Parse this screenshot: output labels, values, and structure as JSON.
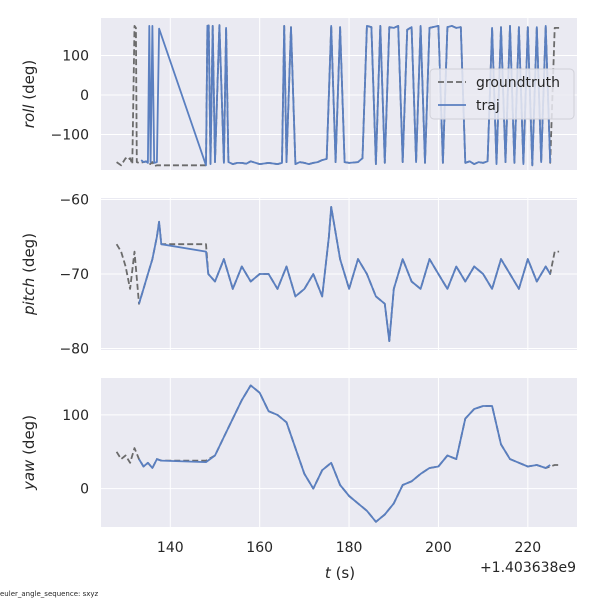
{
  "footnote": "euler_angle_sequence: sxyz",
  "colors": {
    "groundtruth": "#6b6b6b",
    "traj": "#5a7fc0",
    "panel_bg": "#eaeaf2",
    "grid": "#ffffff"
  },
  "chart_data": {
    "type": "line",
    "x_offset_label": "+1.403638e9",
    "xlabel": {
      "italic": "t",
      "rest": " (s)"
    },
    "x_ticks": [
      140,
      160,
      180,
      200,
      220
    ],
    "xlim": [
      124.5,
      231
    ],
    "grid": true,
    "legend": {
      "placement": "right",
      "entries": [
        "groundtruth",
        "traj"
      ]
    },
    "panels": [
      {
        "id": "roll",
        "ylabel": {
          "italic": "roll",
          "rest": " (deg)"
        },
        "ylim": [
          -190,
          195
        ],
        "y_ticks": [
          100,
          0,
          -100
        ],
        "y_tick_labels": [
          "100",
          "0",
          "−100"
        ],
        "series": [
          {
            "name": "groundtruth",
            "style": "dashed",
            "x": [
              128.0,
              129.0,
              130.0,
              130.5,
              131.0,
              131.5,
              132.0,
              132.3,
              132.5,
              133.0,
              134.0,
              135.0,
              135.5,
              136.0,
              136.5,
              137.0,
              138.0,
              139.0,
              140.0,
              145.0,
              148.0,
              148.3,
              148.6,
              149.0,
              149.5,
              150.0,
              151.0,
              152.0,
              152.5,
              153.0,
              154.0,
              155.0,
              156.0,
              157.0,
              158.0,
              160.0,
              162.0,
              164.0,
              165.0,
              165.5,
              166.0,
              167.0,
              168.0,
              169.0,
              170.0,
              171.0,
              172.0,
              173.0,
              174.0,
              175.0,
              176.0,
              177.0,
              178.0,
              179.0,
              180.0,
              182.0,
              183.0,
              184.0,
              185.0,
              186.0,
              187.0,
              188.0,
              189.0,
              190.0,
              191.0,
              192.0,
              193.0,
              194.0,
              195.0,
              196.0,
              197.0,
              198.0,
              200.0,
              201.0,
              202.0,
              203.0,
              204.0,
              205.0,
              206.0,
              207.0,
              208.0,
              209.0,
              210.0,
              211.0,
              212.0,
              213.0,
              214.0,
              215.0,
              216.0,
              217.0,
              218.0,
              219.0,
              220.0,
              221.0,
              222.0,
              223.0,
              224.0,
              225.0,
              226.0,
              227.0
            ],
            "y": [
              -170,
              -178,
              -160,
              -165,
              -160,
              -175,
              175,
              170,
              -170,
              -172,
              -170,
              -168,
              -175,
              -170,
              -180,
              -178,
              -178,
              -178,
              -178,
              -178,
              -178,
              175,
              176,
              -175,
              175,
              -170,
              177,
              -172,
              170,
              -170,
              -175,
              -172,
              -172,
              -174,
              -168,
              -175,
              -172,
              -175,
              -172,
              175,
              -170,
              172,
              -175,
              -170,
              -172,
              -175,
              -172,
              -170,
              -165,
              -162,
              175,
              -170,
              172,
              -170,
              -172,
              -170,
              -160,
              175,
              172,
              -175,
              175,
              -172,
              172,
              170,
              175,
              -170,
              165,
              172,
              -170,
              175,
              -172,
              170,
              175,
              -172,
              172,
              175,
              170,
              172,
              -172,
              -168,
              -175,
              -170,
              -172,
              -168,
              170,
              -175,
              172,
              -170,
              175,
              -172,
              172,
              -175,
              172,
              -178,
              172,
              -170,
              175,
              -172,
              170,
              170
            ]
          },
          {
            "name": "traj",
            "style": "solid",
            "x": [
              133.5,
              134.0,
              134.5,
              135.0,
              135.3,
              135.6,
              136.0,
              136.4,
              137.0,
              137.5,
              148.0,
              148.3,
              148.6,
              149.0,
              149.5,
              150.0,
              151.0,
              152.0,
              152.5,
              153.0,
              154.0,
              155.0,
              156.0,
              157.0,
              158.0,
              160.0,
              162.0,
              164.0,
              165.0,
              165.5,
              166.0,
              167.0,
              168.0,
              169.0,
              170.0,
              171.0,
              172.0,
              173.0,
              174.0,
              175.0,
              176.0,
              177.0,
              178.0,
              179.0,
              180.0,
              182.0,
              183.0,
              184.0,
              185.0,
              186.0,
              187.0,
              188.0,
              189.0,
              190.0,
              191.0,
              192.0,
              193.0,
              194.0,
              195.0,
              196.0,
              197.0,
              198.0,
              200.0,
              201.0,
              202.0,
              203.0,
              204.0,
              205.0,
              206.0,
              207.0,
              208.0,
              209.0,
              210.0,
              211.0,
              212.0,
              213.0,
              214.0,
              215.0,
              216.0,
              217.0,
              218.0,
              219.0,
              220.0,
              221.0,
              222.0,
              223.0,
              224.0,
              225.0
            ],
            "y": [
              -165,
              -170,
              -168,
              -172,
              175,
              -170,
              175,
              -172,
              -170,
              168,
              -178,
              175,
              176,
              -175,
              175,
              -170,
              177,
              -172,
              170,
              -170,
              -175,
              -172,
              -172,
              -174,
              -168,
              -175,
              -172,
              -175,
              -172,
              175,
              -170,
              172,
              -175,
              -170,
              -172,
              -175,
              -172,
              -170,
              -165,
              -162,
              175,
              -170,
              172,
              -170,
              -172,
              -170,
              -160,
              175,
              172,
              -175,
              175,
              -172,
              172,
              170,
              175,
              -170,
              165,
              172,
              -170,
              175,
              -172,
              170,
              175,
              -172,
              172,
              175,
              170,
              172,
              -172,
              -168,
              -175,
              -170,
              -172,
              -168,
              170,
              -175,
              172,
              -170,
              175,
              -172,
              172,
              -175,
              172,
              -178,
              172,
              -170,
              175,
              -172
            ]
          }
        ]
      },
      {
        "id": "pitch",
        "ylabel": {
          "italic": "pitch",
          "rest": " (deg)"
        },
        "ylim": [
          -80.2,
          -59.8
        ],
        "y_ticks": [
          -60,
          -70,
          -80
        ],
        "y_tick_labels": [
          "−60",
          "−70",
          "−80"
        ],
        "series": [
          {
            "name": "groundtruth",
            "style": "dashed",
            "x": [
              128.0,
              129.0,
              130.0,
              131.0,
              132.0,
              133.0,
              134.0,
              135.0,
              136.0,
              137.0,
              137.5,
              138.0,
              140.0,
              145.0,
              148.0,
              148.5,
              150.0,
              152.0,
              154.0,
              156.0,
              158.0,
              160.0,
              162.0,
              164.0,
              166.0,
              168.0,
              170.0,
              172.0,
              174.0,
              175.5,
              176.0,
              178.0,
              180.0,
              182.0,
              184.0,
              186.0,
              188.0,
              189.0,
              190.0,
              192.0,
              194.0,
              196.0,
              198.0,
              200.0,
              202.0,
              204.0,
              206.0,
              208.0,
              210.0,
              212.0,
              214.0,
              216.0,
              218.0,
              220.0,
              222.0,
              224.0,
              225.0,
              226.0,
              227.0
            ],
            "y": [
              -66,
              -67,
              -69,
              -72,
              -67,
              -74,
              -72,
              -70,
              -68,
              -65,
              -63,
              -66,
              -66,
              -66,
              -66,
              -70,
              -71,
              -68,
              -72,
              -69,
              -71,
              -70,
              -70,
              -72,
              -69,
              -73,
              -72,
              -70,
              -73,
              -65,
              -61,
              -68,
              -72,
              -68,
              -70,
              -73,
              -74,
              -79,
              -72,
              -68,
              -71,
              -72,
              -68,
              -70,
              -72,
              -69,
              -71,
              -69,
              -70,
              -72,
              -68,
              -70,
              -72,
              -68,
              -71,
              -69,
              -70,
              -67,
              -67
            ]
          },
          {
            "name": "traj",
            "style": "solid",
            "x": [
              133.0,
              134.0,
              135.0,
              136.0,
              137.0,
              137.5,
              138.0,
              148.0,
              148.5,
              150.0,
              152.0,
              154.0,
              156.0,
              158.0,
              160.0,
              162.0,
              164.0,
              166.0,
              168.0,
              170.0,
              172.0,
              174.0,
              175.5,
              176.0,
              178.0,
              180.0,
              182.0,
              184.0,
              186.0,
              188.0,
              189.0,
              190.0,
              192.0,
              194.0,
              196.0,
              198.0,
              200.0,
              202.0,
              204.0,
              206.0,
              208.0,
              210.0,
              212.0,
              214.0,
              216.0,
              218.0,
              220.0,
              222.0,
              224.0,
              225.0
            ],
            "y": [
              -74,
              -72,
              -70,
              -68,
              -65,
              -63,
              -66,
              -67,
              -70,
              -71,
              -68,
              -72,
              -69,
              -71,
              -70,
              -70,
              -72,
              -69,
              -73,
              -72,
              -70,
              -73,
              -65,
              -61,
              -68,
              -72,
              -68,
              -70,
              -73,
              -74,
              -79,
              -72,
              -68,
              -71,
              -72,
              -68,
              -70,
              -72,
              -69,
              -71,
              -69,
              -70,
              -72,
              -68,
              -70,
              -72,
              -68,
              -71,
              -69,
              -70
            ]
          }
        ]
      },
      {
        "id": "yaw",
        "ylabel": {
          "italic": "yaw",
          "rest": " (deg)"
        },
        "ylim": [
          -52,
          150
        ],
        "y_ticks": [
          100,
          0
        ],
        "y_tick_labels": [
          "100",
          "0"
        ],
        "series": [
          {
            "name": "groundtruth",
            "style": "dashed",
            "x": [
              128.0,
              129.0,
              130.0,
              131.0,
              132.0,
              133.0,
              134.0,
              135.0,
              136.0,
              137.0,
              138.0,
              140.0,
              145.0,
              148.0,
              150.0,
              152.0,
              154.0,
              156.0,
              158.0,
              159.0,
              160.0,
              162.0,
              164.0,
              166.0,
              168.0,
              170.0,
              172.0,
              174.0,
              176.0,
              178.0,
              180.0,
              182.0,
              184.0,
              186.0,
              188.0,
              190.0,
              192.0,
              194.0,
              196.0,
              198.0,
              200.0,
              202.0,
              204.0,
              206.0,
              208.0,
              210.0,
              212.0,
              214.0,
              216.0,
              218.0,
              220.0,
              222.0,
              224.0,
              226.0,
              227.0
            ],
            "y": [
              50,
              40,
              45,
              35,
              55,
              40,
              30,
              35,
              28,
              40,
              38,
              38,
              38,
              38,
              45,
              70,
              95,
              120,
              140,
              135,
              130,
              105,
              100,
              90,
              55,
              20,
              0,
              25,
              35,
              5,
              -10,
              -20,
              -30,
              -45,
              -35,
              -20,
              5,
              10,
              20,
              28,
              30,
              45,
              40,
              95,
              108,
              112,
              112,
              60,
              40,
              35,
              30,
              32,
              28,
              32,
              32
            ]
          },
          {
            "name": "traj",
            "style": "solid",
            "x": [
              133.0,
              134.0,
              135.0,
              136.0,
              137.0,
              138.0,
              148.0,
              150.0,
              152.0,
              154.0,
              156.0,
              158.0,
              159.0,
              160.0,
              162.0,
              164.0,
              166.0,
              168.0,
              170.0,
              172.0,
              174.0,
              176.0,
              178.0,
              180.0,
              182.0,
              184.0,
              186.0,
              188.0,
              190.0,
              192.0,
              194.0,
              196.0,
              198.0,
              200.0,
              202.0,
              204.0,
              206.0,
              208.0,
              210.0,
              212.0,
              214.0,
              216.0,
              218.0,
              220.0,
              222.0,
              224.0,
              225.0
            ],
            "y": [
              40,
              30,
              35,
              28,
              40,
              38,
              36,
              45,
              70,
              95,
              120,
              140,
              135,
              130,
              105,
              100,
              90,
              55,
              20,
              0,
              25,
              35,
              5,
              -10,
              -20,
              -30,
              -45,
              -35,
              -20,
              5,
              10,
              20,
              28,
              30,
              45,
              40,
              95,
              108,
              112,
              112,
              60,
              40,
              35,
              30,
              32,
              28,
              32
            ]
          }
        ]
      }
    ]
  }
}
